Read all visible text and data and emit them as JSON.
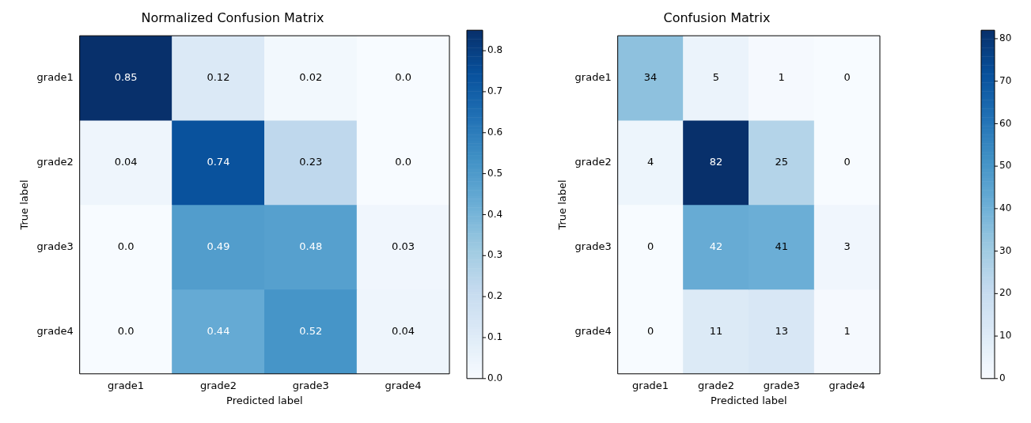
{
  "chart_data": [
    {
      "type": "heatmap",
      "title": "Normalized Confusion Matrix",
      "xlabel": "Predicted label",
      "ylabel": "True label",
      "categories": [
        "grade1",
        "grade2",
        "grade3",
        "grade4"
      ],
      "y_categories": [
        "grade1",
        "grade2",
        "grade3",
        "grade4"
      ],
      "cells": [
        [
          0.85,
          0.12,
          0.02,
          0.0
        ],
        [
          0.04,
          0.74,
          0.23,
          0.0
        ],
        [
          0.0,
          0.49,
          0.48,
          0.03
        ],
        [
          0.0,
          0.44,
          0.52,
          0.04
        ]
      ],
      "cell_labels": [
        [
          "0.85",
          "0.12",
          "0.02",
          "0.0"
        ],
        [
          "0.04",
          "0.74",
          "0.23",
          "0.0"
        ],
        [
          "0.0",
          "0.49",
          "0.48",
          "0.03"
        ],
        [
          "0.0",
          "0.44",
          "0.52",
          "0.04"
        ]
      ],
      "clim": [
        0,
        0.85
      ],
      "cticks": [
        {
          "value": 0,
          "label": "0.0"
        },
        {
          "value": 0.1,
          "label": "0.1"
        },
        {
          "value": 0.2,
          "label": "0.2"
        },
        {
          "value": 0.3,
          "label": "0.3"
        },
        {
          "value": 0.4,
          "label": "0.4"
        },
        {
          "value": 0.5,
          "label": "0.5"
        },
        {
          "value": 0.6,
          "label": "0.6"
        },
        {
          "value": 0.7,
          "label": "0.7"
        },
        {
          "value": 0.8,
          "label": "0.8"
        }
      ]
    },
    {
      "type": "heatmap",
      "title": "Confusion Matrix",
      "xlabel": "Predicted label",
      "ylabel": "True label",
      "categories": [
        "grade1",
        "grade2",
        "grade3",
        "grade4"
      ],
      "y_categories": [
        "grade1",
        "grade2",
        "grade3",
        "grade4"
      ],
      "cells": [
        [
          34,
          5,
          1,
          0
        ],
        [
          4,
          82,
          25,
          0
        ],
        [
          0,
          42,
          41,
          3
        ],
        [
          0,
          11,
          13,
          1
        ]
      ],
      "data_labels": true,
      "clim": [
        0,
        82
      ],
      "cticks": [
        0,
        10,
        20,
        30,
        40,
        50,
        60,
        70,
        80
      ]
    }
  ]
}
